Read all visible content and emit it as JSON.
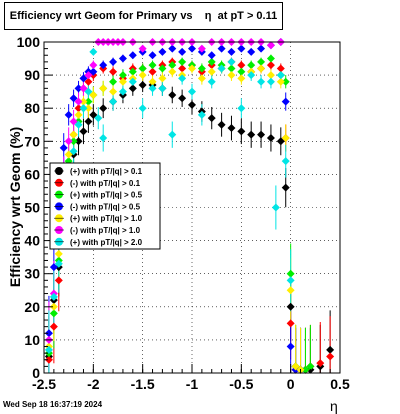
{
  "chart_data": {
    "type": "scatter",
    "title": "Efficiency wrt Geom for Primary vs    η  at pT > 0.11",
    "xlabel": "η",
    "ylabel": "Efficiency wrt Geom (%)",
    "xlim": [
      -2.5,
      0.5
    ],
    "ylim": [
      0,
      100
    ],
    "x_ticks": [
      "-2.5",
      "-2",
      "-1.5",
      "-1",
      "-0.5",
      "0",
      "0.5"
    ],
    "y_ticks": [
      "0",
      "10",
      "20",
      "30",
      "40",
      "50",
      "60",
      "70",
      "80",
      "90",
      "100"
    ],
    "grid": true,
    "legend_position": "center-left",
    "series": [
      {
        "name": "(+) with pT/|q| > 0.1",
        "color": "#000000",
        "marker": "circle",
        "x": [
          -2.45,
          -2.4,
          -2.35,
          -2.3,
          -2.25,
          -2.2,
          -2.15,
          -2.1,
          -2.05,
          -2.0,
          -1.9,
          -1.8,
          -1.7,
          -1.6,
          -1.5,
          -1.4,
          -1.3,
          -1.2,
          -1.1,
          -1.0,
          -0.9,
          -0.8,
          -0.7,
          -0.6,
          -0.5,
          -0.4,
          -0.3,
          -0.2,
          -0.1,
          -0.05,
          0.0,
          0.05,
          0.1,
          0.15,
          0.2,
          0.3,
          0.4
        ],
        "y": [
          5,
          22,
          32,
          52,
          60,
          66,
          70,
          73,
          76,
          78,
          80,
          82,
          84,
          86,
          87,
          87,
          86,
          84,
          83,
          81,
          79,
          77,
          75,
          74,
          73,
          72,
          72,
          71,
          70,
          56,
          20,
          2,
          1,
          1,
          1,
          2,
          7
        ]
      },
      {
        "name": "(-) with pT/|q| > 0.1",
        "color": "#ff0000",
        "marker": "circle",
        "x": [
          -2.45,
          -2.4,
          -2.35,
          -2.3,
          -2.25,
          -2.2,
          -2.15,
          -2.1,
          -2.05,
          -2.0,
          -1.9,
          -1.8,
          -1.7,
          -1.6,
          -1.5,
          -1.4,
          -1.3,
          -1.2,
          -1.1,
          -1.0,
          -0.9,
          -0.8,
          -0.7,
          -0.6,
          -0.5,
          -0.4,
          -0.3,
          -0.2,
          -0.1,
          -0.05,
          0.0,
          0.05,
          0.1,
          0.15,
          0.2,
          0.3,
          0.4
        ],
        "y": [
          4,
          14,
          28,
          48,
          62,
          72,
          80,
          86,
          88,
          90,
          92,
          91,
          89,
          92,
          92,
          91,
          93,
          94,
          92,
          93,
          91,
          93,
          92,
          94,
          93,
          91,
          92,
          93,
          92,
          71,
          15,
          1,
          1,
          1,
          2,
          3,
          5
        ]
      },
      {
        "name": "(+) with pT/|q| > 0.5",
        "color": "#00ee00",
        "marker": "circle",
        "x": [
          -2.45,
          -2.4,
          -2.35,
          -2.3,
          -2.25,
          -2.2,
          -2.15,
          -2.1,
          -2.05,
          -2.0,
          -1.9,
          -1.8,
          -1.7,
          -1.6,
          -1.5,
          -1.4,
          -1.3,
          -1.2,
          -1.1,
          -1.0,
          -0.9,
          -0.8,
          -0.7,
          -0.6,
          -0.5,
          -0.4,
          -0.3,
          -0.2,
          -0.1,
          -0.05,
          0.0,
          0.05,
          0.1,
          0.15,
          0.2
        ],
        "y": [
          6,
          18,
          34,
          55,
          64,
          70,
          76,
          80,
          82,
          84,
          86,
          88,
          90,
          91,
          92,
          93,
          92,
          93,
          94,
          93,
          92,
          94,
          93,
          92,
          91,
          93,
          94,
          95,
          90,
          88,
          30,
          2,
          1,
          1,
          2
        ]
      },
      {
        "name": "(-) with pT/|q| > 0.5",
        "color": "#0000ff",
        "marker": "circle",
        "x": [
          -2.45,
          -2.4,
          -2.35,
          -2.3,
          -2.25,
          -2.2,
          -2.15,
          -2.1,
          -2.05,
          -2.0,
          -1.9,
          -1.8,
          -1.7,
          -1.6,
          -1.5,
          -1.4,
          -1.3,
          -1.2,
          -1.1,
          -1.0,
          -0.9,
          -0.8,
          -0.7,
          -0.6,
          -0.5,
          -0.4,
          -0.3,
          -0.2,
          -0.1,
          -0.05,
          0.0,
          0.05,
          0.1
        ],
        "y": [
          12,
          32,
          48,
          68,
          78,
          83,
          86,
          89,
          91,
          91,
          93,
          94,
          95,
          96,
          97,
          96,
          97,
          98,
          97,
          98,
          97,
          96,
          98,
          97,
          98,
          97,
          98,
          99,
          100,
          82,
          8,
          1,
          1
        ]
      },
      {
        "name": "(+) with pT/|q| > 1.0",
        "color": "#ffee00",
        "marker": "circle",
        "x": [
          -2.45,
          -2.4,
          -2.35,
          -2.3,
          -2.25,
          -2.2,
          -2.15,
          -2.1,
          -2.05,
          -2.0,
          -1.9,
          -1.8,
          -1.7,
          -1.6,
          -1.5,
          -1.4,
          -1.3,
          -1.2,
          -1.1,
          -1.0,
          -0.9,
          -0.8,
          -0.7,
          -0.6,
          -0.5,
          -0.4,
          -0.3,
          -0.2,
          -0.1,
          -0.05,
          0.0,
          0.05,
          0.1
        ],
        "y": [
          8,
          20,
          36,
          58,
          66,
          72,
          78,
          82,
          80,
          84,
          86,
          85,
          88,
          89,
          90,
          88,
          89,
          91,
          90,
          92,
          89,
          91,
          92,
          90,
          89,
          91,
          92,
          90,
          88,
          71,
          25,
          2,
          1
        ]
      },
      {
        "name": "(-) with pT/|q| > 1.0",
        "color": "#ff00ff",
        "marker": "circle",
        "x": [
          -2.45,
          -2.4,
          -2.35,
          -2.3,
          -2.25,
          -2.2,
          -2.15,
          -2.1,
          -2.05,
          -2.0,
          -1.95,
          -1.9,
          -1.85,
          -1.8,
          -1.75,
          -1.7,
          -1.6,
          -1.5,
          -1.4,
          -1.3,
          -1.2,
          -1.1,
          -1.0,
          -0.9,
          -0.8,
          -0.7,
          -0.6,
          -0.5,
          -0.4,
          -0.3,
          -0.2,
          -0.1
        ],
        "y": [
          10,
          24,
          40,
          60,
          70,
          76,
          82,
          86,
          90,
          93,
          100,
          100,
          100,
          100,
          100,
          100,
          100,
          98,
          100,
          100,
          100,
          100,
          100,
          98,
          100,
          100,
          100,
          100,
          100,
          100,
          99,
          100
        ]
      },
      {
        "name": "(+) with pT/|q| > 2.0",
        "color": "#00e5e5",
        "marker": "circle",
        "x": [
          -2.45,
          -2.4,
          -2.35,
          -2.3,
          -2.25,
          -2.2,
          -2.15,
          -2.1,
          -2.05,
          -2.0,
          -1.95,
          -1.9,
          -1.8,
          -1.7,
          -1.6,
          -1.5,
          -1.4,
          -1.3,
          -1.2,
          -1.1,
          -1.0,
          -0.9,
          -0.8,
          -0.7,
          -0.6,
          -0.5,
          -0.4,
          -0.3,
          -0.2,
          -0.15,
          -0.1,
          -0.05,
          0.0
        ],
        "y": [
          7,
          23,
          33,
          50,
          62,
          67,
          75,
          80,
          85,
          97,
          77,
          71,
          82,
          85,
          88,
          80,
          86,
          86,
          72,
          89,
          85,
          78,
          88,
          92,
          94,
          80,
          90,
          88,
          88,
          50,
          90,
          64,
          28
        ]
      }
    ]
  },
  "footer_text": "Wed Sep 18 16:37:19 2024"
}
